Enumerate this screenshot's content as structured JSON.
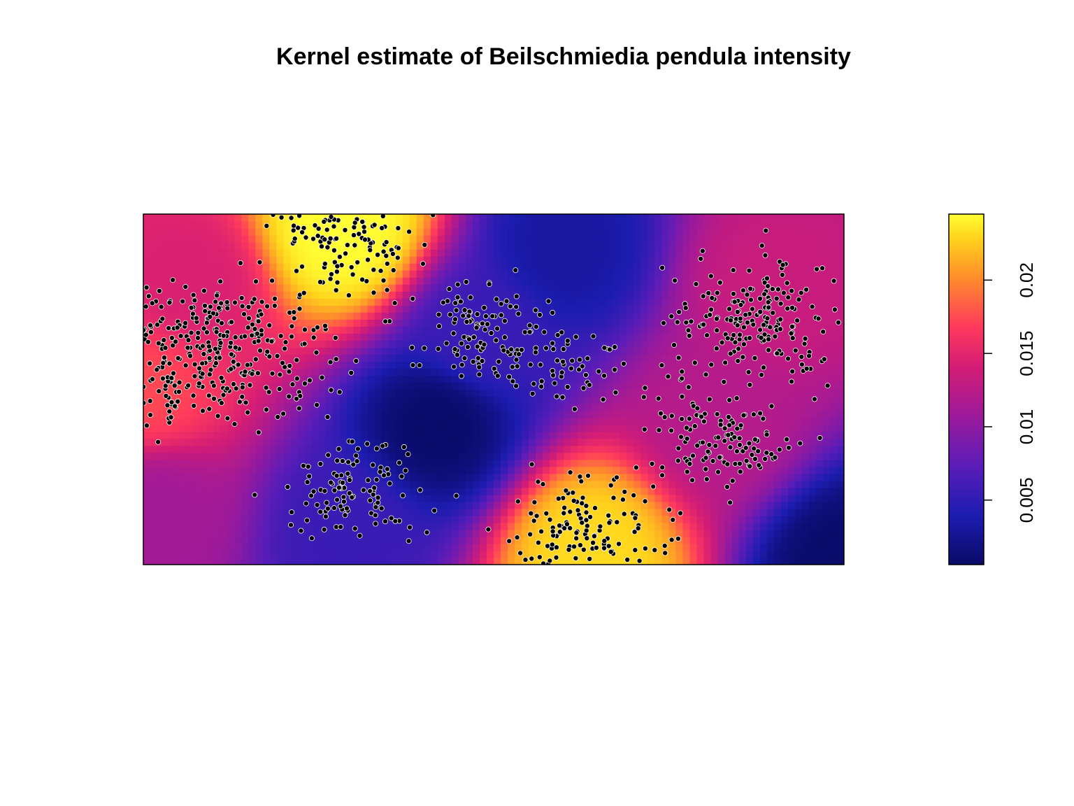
{
  "chart_data": {
    "type": "heatmap",
    "title": "Kernel estimate of Beilschmiedia pendula intensity",
    "xlabel": "",
    "ylabel": "",
    "x_range": [
      0,
      1000
    ],
    "y_range": [
      0,
      500
    ],
    "axes_shown": false,
    "grid": false,
    "overlay": "point pattern (tree locations) drawn as black dots",
    "color_scale": {
      "palette": "plasma-like (dark navy → blue → purple → magenta → orange → yellow)",
      "range": [
        0.0006,
        0.0245
      ],
      "ticks": [
        0.005,
        0.01,
        0.015,
        0.02
      ],
      "tick_labels": [
        "0.005",
        "0.01",
        "0.015",
        "0.02"
      ],
      "position": "right",
      "colors": [
        "#0a0a66",
        "#1c1cb0",
        "#5a1cb8",
        "#9a1a9c",
        "#d21c76",
        "#ff3a5c",
        "#ff8e2c",
        "#ffd21c",
        "#ffff33"
      ]
    },
    "intensity_hotspots": [
      {
        "x": 285,
        "y": 480,
        "value": 0.0245
      },
      {
        "x": 640,
        "y": 20,
        "value": 0.022
      },
      {
        "x": 5,
        "y": 250,
        "value": 0.016
      },
      {
        "x": 70,
        "y": 400,
        "value": 0.013
      },
      {
        "x": 900,
        "y": 400,
        "value": 0.012
      },
      {
        "x": 820,
        "y": 200,
        "value": 0.011
      },
      {
        "x": 20,
        "y": 80,
        "value": 0.01
      },
      {
        "x": 290,
        "y": 50,
        "value": 0.005
      },
      {
        "x": 480,
        "y": 330,
        "value": 0.005
      }
    ],
    "intensity_lows": [
      {
        "x": 420,
        "y": 200,
        "value": 0.0008
      },
      {
        "x": 1000,
        "y": 0,
        "value": 0.0008
      },
      {
        "x": 600,
        "y": 450,
        "value": 0.003
      }
    ],
    "points_per_cluster_estimate": [
      {
        "x": 285,
        "y": 470,
        "count": 140
      },
      {
        "x": 640,
        "y": 40,
        "count": 160
      },
      {
        "x": 100,
        "y": 300,
        "count": 360
      },
      {
        "x": 880,
        "y": 350,
        "count": 200
      },
      {
        "x": 480,
        "y": 330,
        "count": 120
      },
      {
        "x": 300,
        "y": 110,
        "count": 110
      },
      {
        "x": 820,
        "y": 180,
        "count": 120
      },
      {
        "x": 620,
        "y": 280,
        "count": 45
      }
    ]
  }
}
